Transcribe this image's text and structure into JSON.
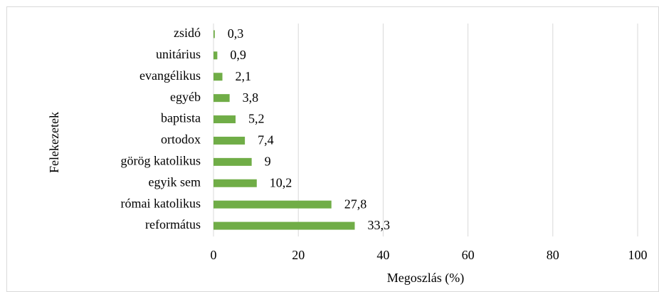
{
  "chart_data": {
    "type": "bar",
    "orientation": "horizontal",
    "categories": [
      "zsidó",
      "unitárius",
      "evangélikus",
      "egyéb",
      "baptista",
      "ortodox",
      "görög katolikus",
      "egyik sem",
      "római katolikus",
      "református"
    ],
    "values": [
      0.3,
      0.9,
      2.1,
      3.8,
      5.2,
      7.4,
      9,
      10.2,
      27.8,
      33.3
    ],
    "value_labels": [
      "0,3",
      "0,9",
      "2,1",
      "3,8",
      "5,2",
      "7,4",
      "9",
      "10,2",
      "27,8",
      "33,3"
    ],
    "color": "#70ad47",
    "xlim": [
      0,
      100
    ],
    "xticks": [
      0,
      20,
      40,
      60,
      80,
      100
    ],
    "grid": true,
    "x_label": "Megoszlás (%)",
    "y_label": "Felekezetek"
  }
}
